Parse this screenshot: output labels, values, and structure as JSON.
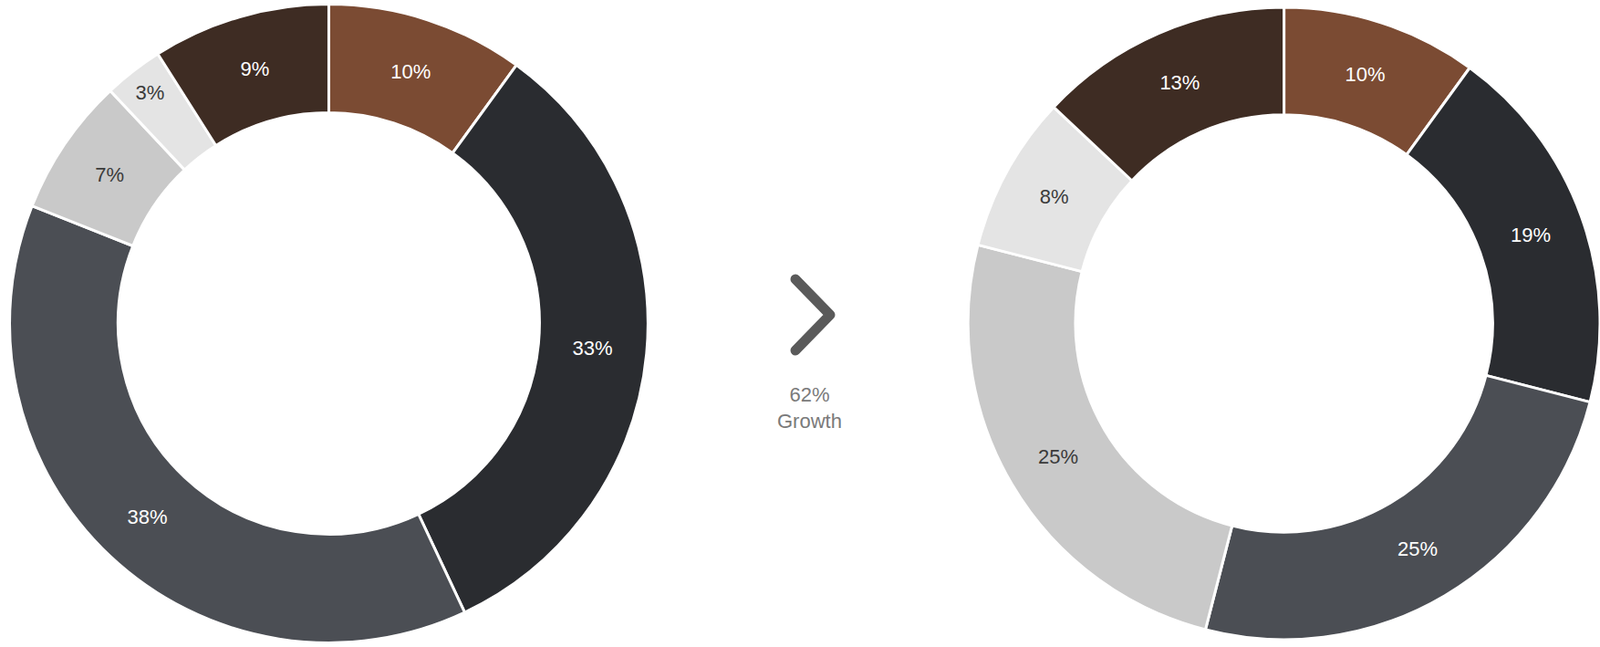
{
  "chart_data": [
    {
      "type": "pie",
      "hole": true,
      "values": [
        10,
        33,
        38,
        7,
        3,
        9
      ],
      "value_labels": [
        "10%",
        "33%",
        "38%",
        "7%",
        "3%",
        "9%"
      ],
      "colors": [
        "#7b4b33",
        "#2a2c30",
        "#4b4e54",
        "#c9c9c9",
        "#e4e4e4",
        "#3e2c23"
      ],
      "data_labels": true
    },
    {
      "type": "pie",
      "hole": true,
      "values": [
        10,
        19,
        25,
        25,
        8,
        13
      ],
      "value_labels": [
        "10%",
        "19%",
        "25%",
        "25%",
        "8%",
        "13%"
      ],
      "colors": [
        "#7b4b33",
        "#2a2c30",
        "#4b4e54",
        "#c9c9c9",
        "#e4e4e4",
        "#3e2c23"
      ],
      "data_labels": true
    }
  ],
  "annotation": {
    "lines": [
      "62%",
      "Growth"
    ]
  }
}
